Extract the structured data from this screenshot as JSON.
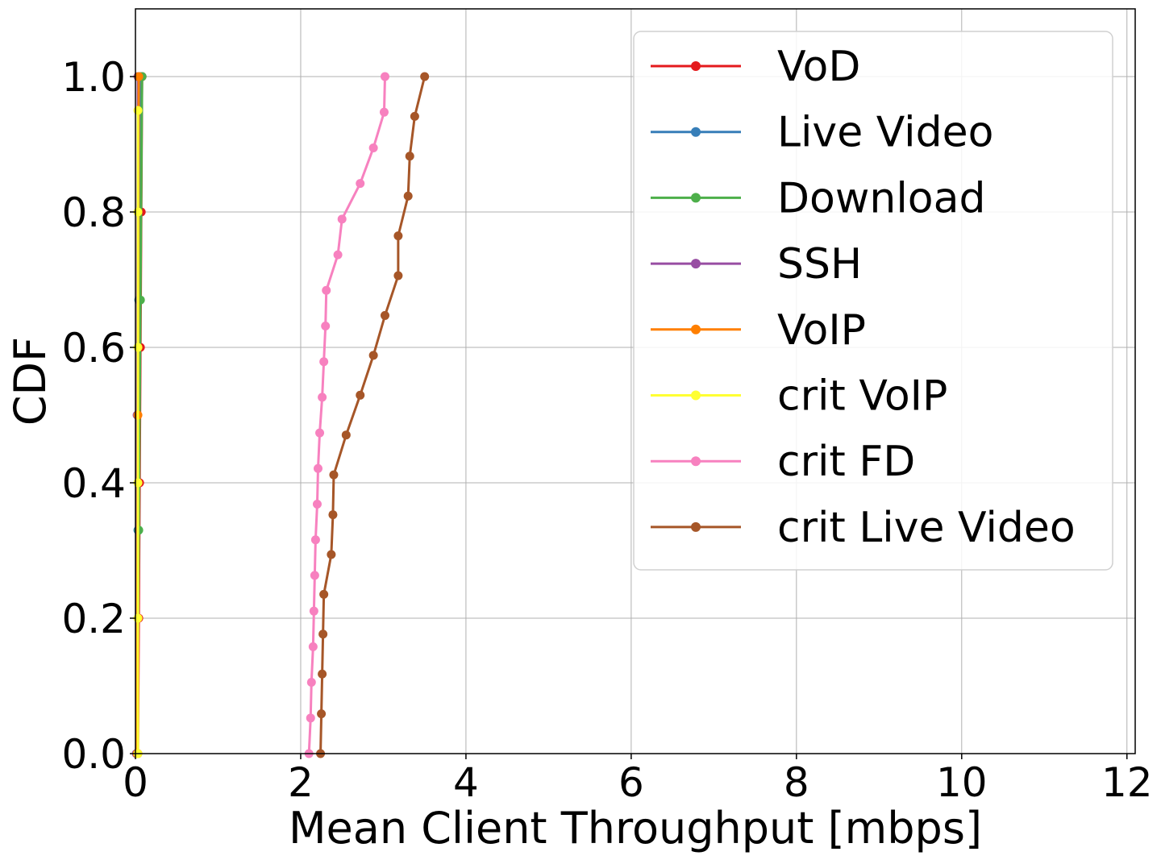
{
  "chart_data": {
    "type": "line",
    "title": "",
    "xlabel": "Mean Client Throughput [mbps]",
    "ylabel": "CDF",
    "xlim": [
      0,
      12.1
    ],
    "ylim": [
      0,
      1.1
    ],
    "xticks": [
      "0",
      "2",
      "4",
      "6",
      "8",
      "10",
      "12"
    ],
    "xtick_values": [
      0,
      2,
      4,
      6,
      8,
      10,
      12
    ],
    "yticks": [
      "0.0",
      "0.2",
      "0.4",
      "0.6",
      "0.8",
      "1.0"
    ],
    "ytick_values": [
      0,
      0.2,
      0.4,
      0.6,
      0.8,
      1.0
    ],
    "grid": true,
    "legend_position": "top-right",
    "series": [
      {
        "name": "VoD",
        "color": "#e41a1c",
        "x": [
          0.03,
          0.04,
          0.05,
          0.06,
          0.07,
          0.08
        ],
        "y": [
          0.0,
          0.2,
          0.4,
          0.6,
          0.8,
          1.0
        ]
      },
      {
        "name": "Live Video",
        "color": "#377eb8",
        "x": [
          0.02,
          0.03,
          0.04,
          0.05
        ],
        "y": [
          0.0,
          0.33,
          0.67,
          1.0
        ]
      },
      {
        "name": "Download",
        "color": "#4daf4a",
        "x": [
          0.02,
          0.04,
          0.06,
          0.08
        ],
        "y": [
          0.0,
          0.33,
          0.67,
          1.0
        ]
      },
      {
        "name": "SSH",
        "color": "#984ea3",
        "x": [
          0.01,
          0.02,
          0.03
        ],
        "y": [
          0.0,
          0.5,
          1.0
        ]
      },
      {
        "name": "VoIP",
        "color": "#ff7f00",
        "x": [
          0.02,
          0.03,
          0.04
        ],
        "y": [
          0.0,
          0.5,
          1.0
        ]
      },
      {
        "name": "crit VoIP",
        "color": "#ffff33",
        "x": [
          0.03,
          0.03,
          0.03,
          0.03,
          0.03,
          0.03
        ],
        "y": [
          0.0,
          0.2,
          0.4,
          0.6,
          0.8,
          0.95
        ]
      },
      {
        "name": "crit FD",
        "color": "#f781bf",
        "x": [
          2.1,
          2.12,
          2.13,
          2.15,
          2.16,
          2.17,
          2.18,
          2.2,
          2.21,
          2.23,
          2.26,
          2.28,
          2.3,
          2.31,
          2.45,
          2.5,
          2.72,
          2.88,
          3.01,
          3.02
        ],
        "y": [
          0.0,
          0.0526,
          0.1053,
          0.1579,
          0.2105,
          0.2632,
          0.3158,
          0.3684,
          0.4211,
          0.4737,
          0.5263,
          0.5789,
          0.6316,
          0.6842,
          0.7368,
          0.7895,
          0.8421,
          0.8947,
          0.9474,
          1.0
        ]
      },
      {
        "name": "crit Live Video",
        "color": "#a65628",
        "x": [
          2.24,
          2.25,
          2.26,
          2.27,
          2.28,
          2.37,
          2.39,
          2.4,
          2.55,
          2.72,
          2.88,
          3.02,
          3.18,
          3.18,
          3.3,
          3.32,
          3.38,
          3.5
        ],
        "y": [
          0.0,
          0.0588,
          0.1176,
          0.1765,
          0.2353,
          0.2941,
          0.3529,
          0.4118,
          0.4706,
          0.5294,
          0.5882,
          0.6471,
          0.7059,
          0.7647,
          0.8235,
          0.8824,
          0.9412,
          1.0
        ]
      }
    ]
  }
}
